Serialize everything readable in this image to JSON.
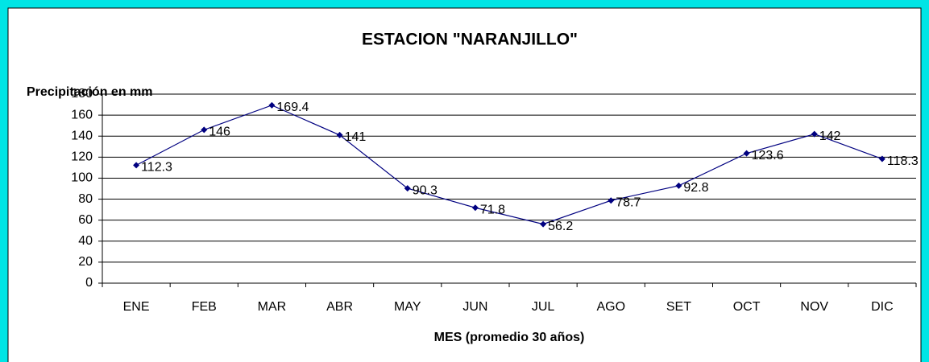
{
  "chart_data": {
    "type": "line",
    "title": "ESTACION \"NARANJILLO\"",
    "y_label": "Precipitación en mm",
    "x_label": "MES (promedio 30 años)",
    "categories": [
      "ENE",
      "FEB",
      "MAR",
      "ABR",
      "MAY",
      "JUN",
      "JUL",
      "AGO",
      "SET",
      "OCT",
      "NOV",
      "DIC"
    ],
    "series": [
      {
        "color": "#000080",
        "values": [
          112.3,
          146,
          169.4,
          141,
          90.3,
          71.8,
          56.2,
          78.7,
          92.8,
          123.6,
          142,
          118.3
        ]
      }
    ],
    "ylim": [
      0,
      180
    ],
    "yticks": [
      0,
      20,
      40,
      60,
      80,
      100,
      120,
      140,
      160,
      180
    ],
    "grid": true
  }
}
